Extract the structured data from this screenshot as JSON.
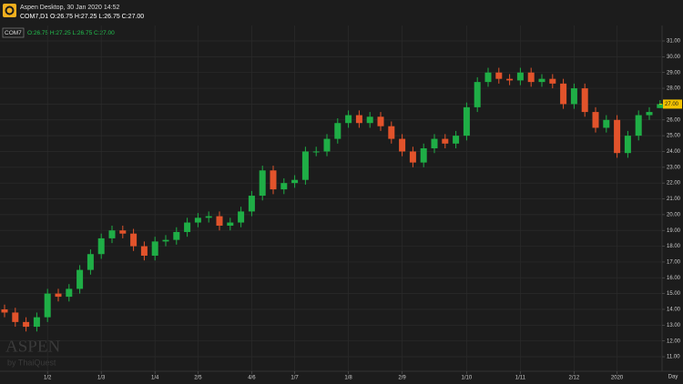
{
  "header": {
    "app_title": "Aspen Desktop, 30 Jan 2020 14:52",
    "symbol_line": "COM7,D1 O:26.75 H:27.25 L:26.75 C:27.00"
  },
  "chart_data": {
    "type": "candlestick",
    "legend_symbol": "COM7",
    "legend_ohlc": "O:26.75 H:27.25 L:26.75 C:27.00",
    "categories": [
      null,
      null,
      null,
      null,
      "1/2",
      null,
      null,
      null,
      null,
      "1/3",
      null,
      null,
      null,
      null,
      "1/4",
      null,
      null,
      null,
      "2/5",
      null,
      null,
      null,
      null,
      "4/6",
      null,
      null,
      null,
      "1/7",
      null,
      null,
      null,
      null,
      "1/8",
      null,
      null,
      null,
      null,
      "2/9",
      null,
      null,
      null,
      null,
      null,
      "1/10",
      null,
      null,
      null,
      null,
      "1/11",
      null,
      null,
      null,
      null,
      "2/12",
      null,
      null,
      null,
      "2020",
      null,
      null,
      null,
      null
    ],
    "x_axis_label": "Day",
    "open": [
      14.0,
      13.8,
      13.2,
      12.9,
      13.5,
      15.0,
      14.8,
      15.3,
      16.5,
      17.5,
      18.5,
      19.0,
      18.8,
      18.0,
      17.4,
      18.3,
      18.4,
      18.9,
      19.5,
      19.8,
      19.9,
      19.3,
      19.5,
      20.2,
      21.2,
      22.8,
      21.6,
      22.0,
      22.2,
      24.0,
      24.0,
      24.8,
      25.8,
      26.3,
      25.8,
      26.2,
      25.6,
      24.8,
      24.0,
      23.3,
      24.2,
      24.8,
      24.5,
      25.0,
      26.8,
      28.4,
      29.0,
      28.6,
      28.5,
      29.0,
      28.4,
      28.6,
      28.3,
      27.0,
      28.0,
      26.5,
      25.5,
      26.0,
      23.9,
      25.0,
      26.3,
      26.75
    ],
    "high": [
      14.3,
      14.1,
      13.5,
      13.8,
      15.3,
      15.3,
      15.6,
      16.8,
      17.8,
      18.8,
      19.3,
      19.3,
      19.1,
      18.3,
      18.6,
      18.7,
      19.2,
      19.8,
      20.1,
      20.2,
      20.2,
      19.8,
      20.5,
      21.5,
      23.1,
      23.1,
      22.3,
      22.5,
      24.3,
      24.3,
      25.1,
      26.1,
      26.6,
      26.6,
      26.5,
      26.5,
      25.9,
      25.1,
      24.3,
      24.5,
      25.1,
      25.1,
      25.3,
      27.1,
      28.7,
      29.3,
      29.3,
      28.9,
      29.3,
      29.3,
      28.9,
      28.9,
      28.6,
      28.3,
      28.3,
      26.8,
      26.3,
      26.3,
      25.3,
      26.6,
      26.8,
      27.25
    ],
    "low": [
      13.5,
      12.9,
      12.6,
      12.6,
      13.2,
      14.5,
      14.5,
      15.0,
      16.2,
      17.2,
      18.2,
      18.5,
      17.7,
      17.1,
      17.1,
      18.0,
      18.1,
      18.6,
      19.2,
      19.5,
      19.0,
      19.0,
      19.2,
      19.9,
      20.9,
      21.3,
      21.3,
      21.7,
      21.9,
      23.7,
      23.7,
      24.5,
      25.5,
      25.5,
      25.5,
      25.3,
      24.5,
      23.7,
      23.0,
      23.0,
      23.9,
      24.2,
      24.2,
      24.7,
      26.5,
      28.1,
      28.3,
      28.2,
      28.2,
      28.1,
      28.1,
      28.0,
      26.7,
      26.7,
      26.2,
      25.2,
      25.2,
      23.6,
      23.6,
      24.7,
      26.0,
      26.75
    ],
    "close": [
      13.8,
      13.2,
      12.9,
      13.5,
      15.0,
      14.8,
      15.3,
      16.5,
      17.5,
      18.5,
      19.0,
      18.8,
      18.0,
      17.4,
      18.3,
      18.4,
      18.9,
      19.5,
      19.8,
      19.9,
      19.3,
      19.5,
      20.2,
      21.2,
      22.8,
      21.6,
      22.0,
      22.2,
      24.0,
      24.0,
      24.8,
      25.8,
      26.3,
      25.8,
      26.2,
      25.6,
      24.8,
      24.0,
      23.3,
      24.2,
      24.8,
      24.5,
      25.0,
      26.8,
      28.4,
      29.0,
      28.6,
      28.5,
      29.0,
      28.4,
      28.6,
      28.3,
      27.0,
      28.0,
      26.5,
      25.5,
      26.0,
      23.9,
      25.0,
      26.3,
      26.5,
      27.0
    ],
    "up_color": "#1fae46",
    "down_color": "#e2532b",
    "ylim": [
      10.08,
      31.98
    ],
    "yticks": [
      {
        "value": 11,
        "label": "11.00"
      },
      {
        "value": 12,
        "label": "12.00"
      },
      {
        "value": 13,
        "label": "13.00"
      },
      {
        "value": 14,
        "label": "14.00"
      },
      {
        "value": 15,
        "label": "15.00"
      },
      {
        "value": 16,
        "label": "16.00"
      },
      {
        "value": 17,
        "label": "17.00"
      },
      {
        "value": 18,
        "label": "18.00"
      },
      {
        "value": 19,
        "label": "19.00"
      },
      {
        "value": 20,
        "label": "20.00"
      },
      {
        "value": 21,
        "label": "21.00"
      },
      {
        "value": 22,
        "label": "22.00"
      },
      {
        "value": 23,
        "label": "23.00"
      },
      {
        "value": 24,
        "label": "24.00"
      },
      {
        "value": 25,
        "label": "25.00"
      },
      {
        "value": 26,
        "label": "26.00"
      },
      {
        "value": 27,
        "label": "27.00"
      },
      {
        "value": 28,
        "label": "28.00"
      },
      {
        "value": 29,
        "label": "29.00"
      },
      {
        "value": 30,
        "label": "30.00"
      },
      {
        "value": 31,
        "label": "31.00"
      }
    ],
    "grid": true,
    "last_price": {
      "value": 27,
      "label": "27.00"
    },
    "watermark": "ASPEN",
    "watermark_sub": "by ThaiQuest"
  }
}
